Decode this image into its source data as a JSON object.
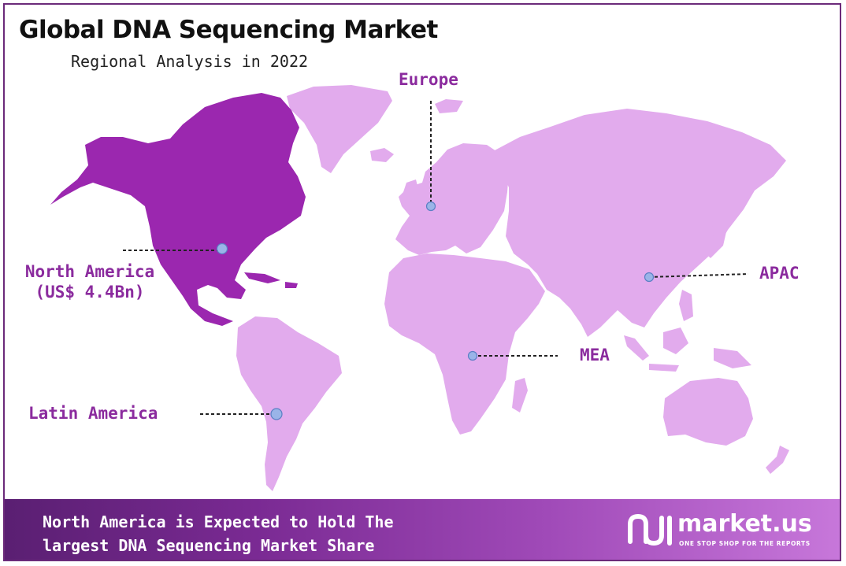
{
  "title": "Global DNA Sequencing Market",
  "subtitle": "Regional Analysis in 2022",
  "regions": {
    "europe": {
      "label": "Europe"
    },
    "north_america": {
      "label": "North America",
      "value": "(US$ 4.4Bn)"
    },
    "apac": {
      "label": "APAC"
    },
    "mea": {
      "label": "MEA"
    },
    "latin_america": {
      "label": "Latin America"
    }
  },
  "footer": {
    "line1": "North America is Expected to Hold The",
    "line2": "largest DNA Sequencing Market Share"
  },
  "brand": {
    "name": "market.us",
    "tagline": "ONE STOP SHOP FOR THE REPORTS"
  },
  "colors": {
    "highlight_region": "#9b27af",
    "other_regions": "#e2abed",
    "label_text": "#8b2b9e",
    "marker": "#9ab4e8",
    "frame": "#6b2a7a"
  }
}
